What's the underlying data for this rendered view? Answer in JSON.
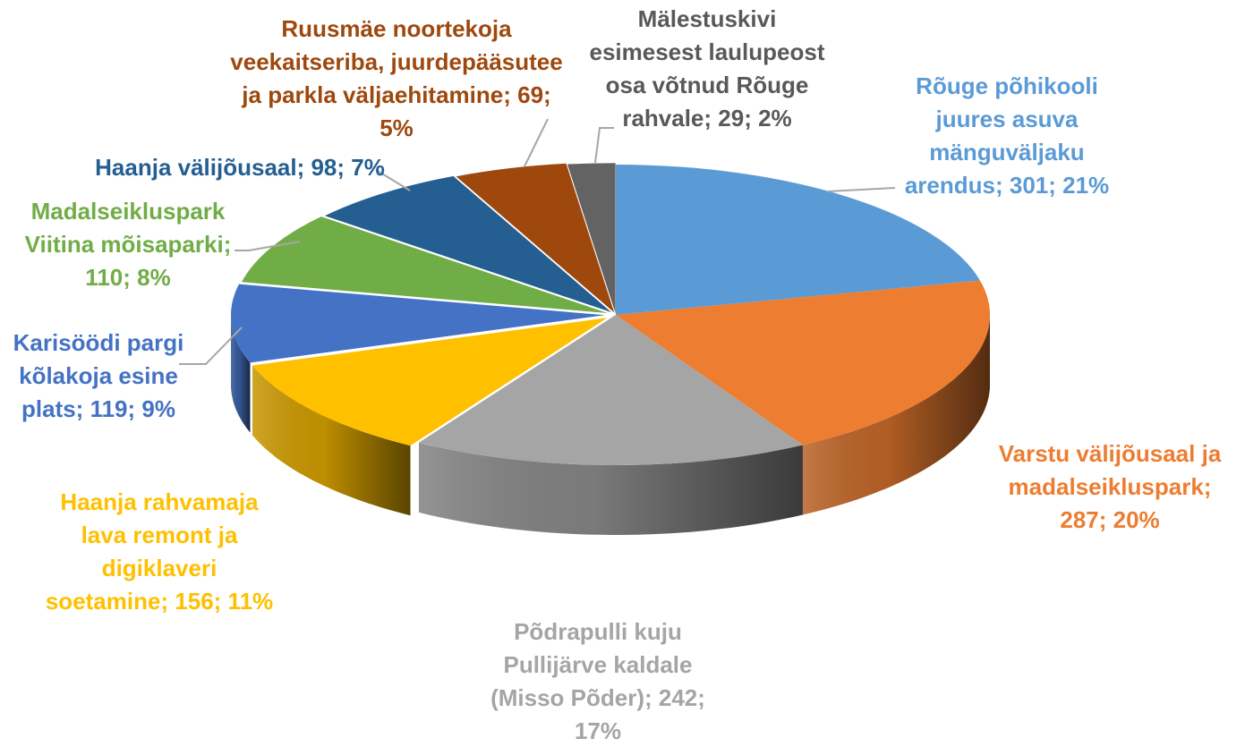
{
  "chart_data": {
    "type": "pie",
    "style": "3d-exploded-elliptical",
    "title": "",
    "slices": [
      {
        "label_lines": [
          "Rõuge põhikooli",
          "juures asuva",
          "mänguväljaku",
          "arendus; 301; 21%"
        ],
        "name": "Rõuge põhikooli juures asuva mänguväljaku arendus",
        "value": 301,
        "percent": "21%",
        "color": "#5B9BD5"
      },
      {
        "label_lines": [
          "Varstu välijõusaal ja",
          "madalseikluspark;",
          "287; 20%"
        ],
        "name": "Varstu välijõusaal ja madalseikluspark",
        "value": 287,
        "percent": "20%",
        "color": "#ED7D31"
      },
      {
        "label_lines": [
          "Põdrapulli kuju",
          "Pullijärve kaldale",
          "(Misso Põder); 242;",
          "17%"
        ],
        "name": "Põdrapulli kuju Pullijärve kaldale (Misso Põder)",
        "value": 242,
        "percent": "17%",
        "color": "#A5A5A5"
      },
      {
        "label_lines": [
          "Haanja rahvamaja",
          "lava remont ja",
          "digiklaveri",
          "soetamine; 156; 11%"
        ],
        "name": "Haanja rahvamaja lava remont ja digiklaveri soetamine",
        "value": 156,
        "percent": "11%",
        "color": "#FFC000"
      },
      {
        "label_lines": [
          "Karisöödi pargi",
          "kõlakoja esine",
          "plats; 119; 9%"
        ],
        "name": "Karisöödi pargi kõlakoja esine plats",
        "value": 119,
        "percent": "9%",
        "color": "#4472C4"
      },
      {
        "label_lines": [
          "Madalseikluspark",
          "Viitina mõisaparki;",
          "110; 8%"
        ],
        "name": "Madalseikluspark Viitina mõisaparki",
        "value": 110,
        "percent": "8%",
        "color": "#70AD47"
      },
      {
        "label_lines": [
          "Haanja välijõusaal; 98; 7%"
        ],
        "name": "Haanja välijõusaal",
        "value": 98,
        "percent": "7%",
        "color": "#255E91"
      },
      {
        "label_lines": [
          "Ruusmäe noortekoja",
          "veekaitseriba, juurdepääsutee",
          "ja parkla väljaehitamine; 69;",
          "5%"
        ],
        "name": "Ruusmäe noortekoja veekaitseriba, juurdepääsutee ja parkla väljaehitamine",
        "value": 69,
        "percent": "5%",
        "color": "#9E480E"
      },
      {
        "label_lines": [
          "Mälestuskivi",
          "esimesest laulupeost",
          "osa võtnud Rõuge",
          "rahvale; 29; 2%"
        ],
        "name": "Mälestuskivi esimesest laulupeost osa võtnud Rõuge rahvale",
        "value": 29,
        "percent": "2%",
        "color": "#636363"
      }
    ],
    "label_colors": [
      "#5B9BD5",
      "#ED7D31",
      "#A5A5A5",
      "#FFC000",
      "#4472C4",
      "#70AD47",
      "#255E91",
      "#9E480E",
      "#595959"
    ]
  }
}
